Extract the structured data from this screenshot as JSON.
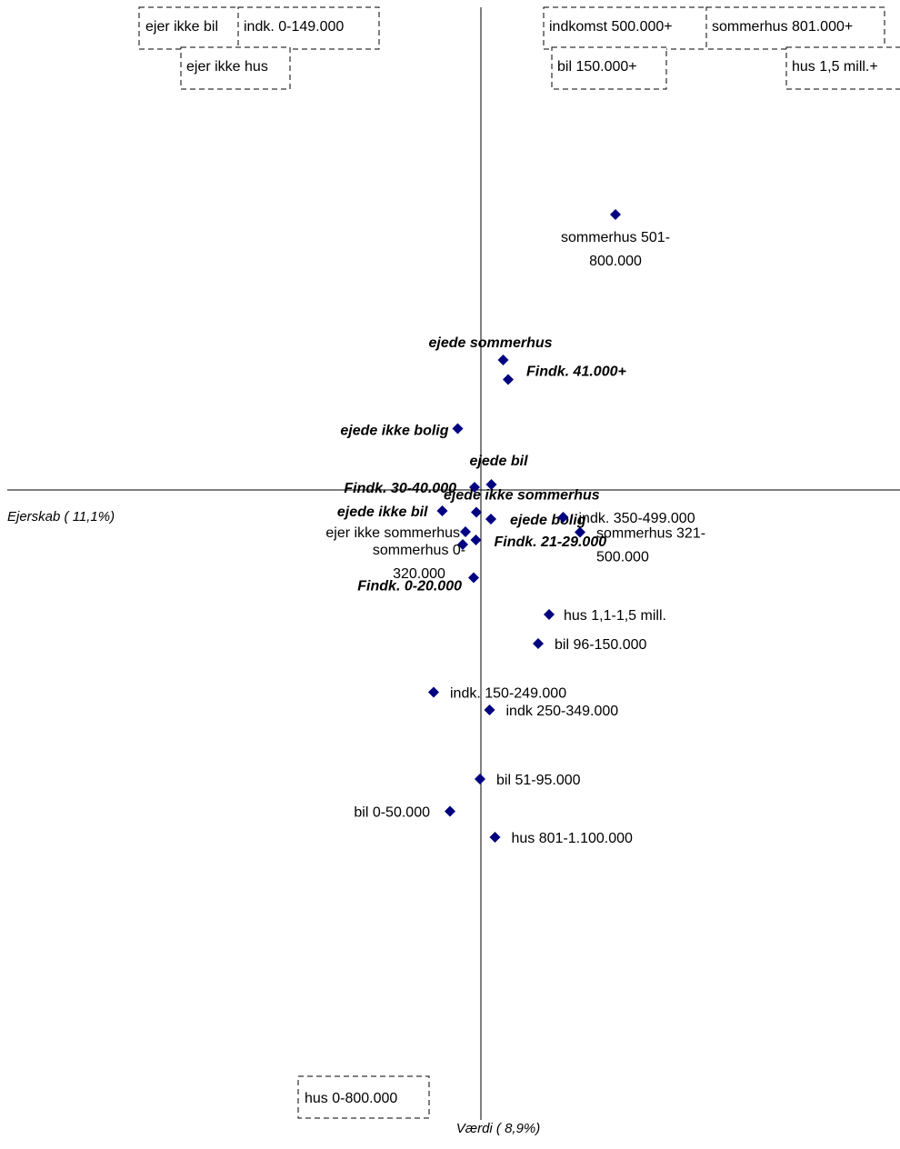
{
  "chart_data": {
    "type": "scatter",
    "xlabel": "Ejerskab ( 11,1%)",
    "ylabel": "Værdi ( 8,9%)",
    "marker_color": "#000080",
    "points": [
      {
        "label": "sommerhus 501-800.000",
        "x": 0.296,
        "y": 0.606,
        "style": "normal"
      },
      {
        "label": "ejede sommerhus",
        "x": 0.049,
        "y": 0.286,
        "style": "bold-italic"
      },
      {
        "label": "Findk. 41.000+",
        "x": 0.06,
        "y": 0.243,
        "style": "bold-italic"
      },
      {
        "label": "ejede ikke bolig",
        "x": -0.051,
        "y": 0.135,
        "style": "bold-italic"
      },
      {
        "label": "ejede bil",
        "x": 0.023,
        "y": 0.012,
        "style": "bold-italic"
      },
      {
        "label": "Findk. 30-40.000",
        "x": -0.014,
        "y": 0.006,
        "style": "bold-italic"
      },
      {
        "label": "ejede ikke sommerhus",
        "x": -0.01,
        "y": -0.049,
        "style": "bold-italic"
      },
      {
        "label": "ejede ikke bil",
        "x": -0.085,
        "y": -0.046,
        "style": "bold-italic"
      },
      {
        "label": "ejede bolig",
        "x": 0.022,
        "y": -0.064,
        "style": "bold-italic"
      },
      {
        "label": "indk. 350-499.000",
        "x": 0.181,
        "y": -0.06,
        "style": "normal"
      },
      {
        "label": "sommerhus 321-500.000",
        "x": 0.218,
        "y": -0.093,
        "style": "normal"
      },
      {
        "label": "ejer ikke sommerhus",
        "x": -0.034,
        "y": -0.092,
        "style": "normal"
      },
      {
        "label": "sommerhus 0-320.000",
        "x": -0.04,
        "y": -0.12,
        "style": "normal"
      },
      {
        "label": "Findk. 21-29.000",
        "x": -0.011,
        "y": -0.11,
        "style": "bold-italic"
      },
      {
        "label": "Findk. 0-20.000",
        "x": -0.016,
        "y": -0.193,
        "style": "bold-italic"
      },
      {
        "label": "hus 1,1-1,5 mill.",
        "x": 0.15,
        "y": -0.274,
        "style": "normal"
      },
      {
        "label": "bil 96-150.000",
        "x": 0.126,
        "y": -0.338,
        "style": "normal"
      },
      {
        "label": "indk. 150-249.000",
        "x": -0.104,
        "y": -0.445,
        "style": "normal"
      },
      {
        "label": "indk 250-349.000",
        "x": 0.019,
        "y": -0.484,
        "style": "normal"
      },
      {
        "label": "bil 51-95.000",
        "x": -0.002,
        "y": -0.636,
        "style": "normal"
      },
      {
        "label": "bil 0-50.000",
        "x": -0.068,
        "y": -0.707,
        "style": "normal"
      },
      {
        "label": "hus 801-1.100.000",
        "x": 0.031,
        "y": -0.764,
        "style": "normal"
      }
    ],
    "offscale_labels": [
      "ejer ikke bil",
      "indk. 0-149.000",
      "ejer ikke hus",
      "indkomst 500.000+",
      "sommerhus 801.000+",
      "bil 150.000+",
      "hus 1,5 mill.+",
      "hus 0-800.000"
    ]
  }
}
